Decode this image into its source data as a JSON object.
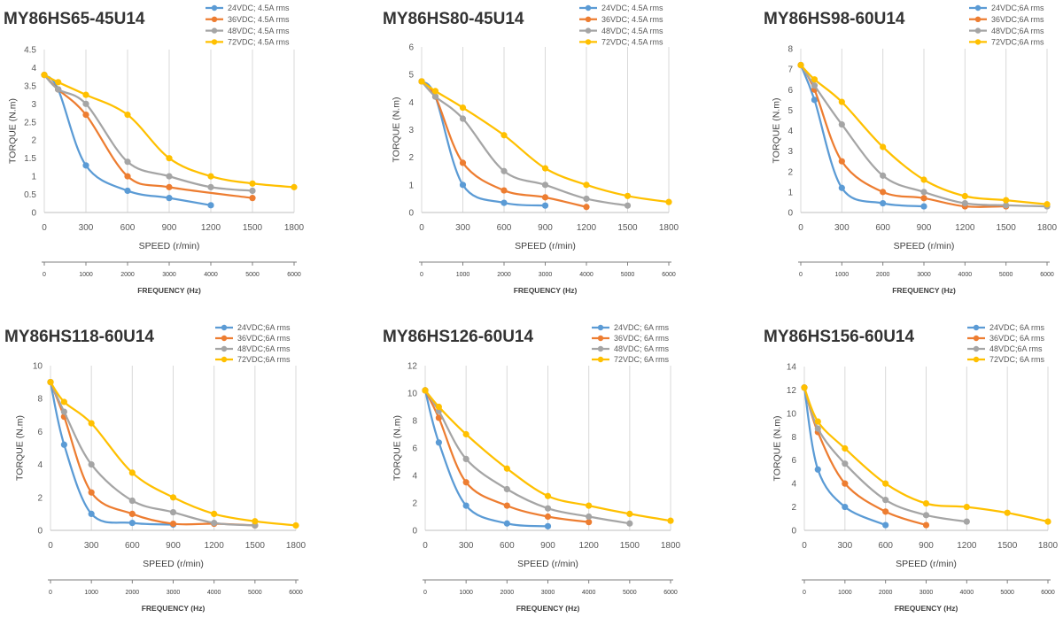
{
  "chart_data": [
    {
      "type": "line",
      "title": "MY86HS65-45U14",
      "xlabel": "SPEED (r/min)",
      "ylabel": "TORQUE (N.m)",
      "x2label": "FREQUENCY (Hz)",
      "xlim": [
        0,
        1800
      ],
      "ylim": [
        0,
        4.5
      ],
      "x2lim": [
        0,
        6000
      ],
      "xticks": [
        0,
        300,
        600,
        900,
        1200,
        1500,
        1800
      ],
      "x2ticks": [
        0,
        1000,
        2000,
        3000,
        4000,
        5000,
        6000
      ],
      "yticks": [
        0,
        0.5,
        1,
        1.5,
        2,
        2.5,
        3,
        3.5,
        4,
        4.5
      ],
      "grid": "vertical",
      "legend": "top-right",
      "series": [
        {
          "name": "24VDC; 4.5A rms",
          "color": "#5B9BD5",
          "x": [
            0,
            100,
            300,
            600,
            900,
            1200
          ],
          "y": [
            3.8,
            3.4,
            1.3,
            0.6,
            0.4,
            0.2
          ]
        },
        {
          "name": "36VDC; 4.5A rms",
          "color": "#ED7D31",
          "x": [
            0,
            100,
            300,
            600,
            900,
            1500
          ],
          "y": [
            3.8,
            3.4,
            2.7,
            1.0,
            0.7,
            0.4
          ]
        },
        {
          "name": "48VDC; 4.5A rms",
          "color": "#A5A5A5",
          "x": [
            0,
            100,
            300,
            600,
            900,
            1200,
            1500
          ],
          "y": [
            3.8,
            3.4,
            3.0,
            1.4,
            1.0,
            0.7,
            0.6
          ]
        },
        {
          "name": "72VDC; 4.5A rms",
          "color": "#FFC000",
          "x": [
            0,
            100,
            300,
            600,
            900,
            1200,
            1500,
            1800
          ],
          "y": [
            3.8,
            3.6,
            3.25,
            2.7,
            1.5,
            1.0,
            0.8,
            0.7
          ]
        }
      ]
    },
    {
      "type": "line",
      "title": "MY86HS80-45U14",
      "xlabel": "SPEED (r/min)",
      "ylabel": "TORQUE (N.m)",
      "x2label": "FREQUENCY (Hz)",
      "xlim": [
        0,
        1800
      ],
      "ylim": [
        0,
        6
      ],
      "x2lim": [
        0,
        6000
      ],
      "xticks": [
        0,
        300,
        600,
        900,
        1200,
        1500,
        1800
      ],
      "x2ticks": [
        0,
        1000,
        2000,
        3000,
        4000,
        5000,
        6000
      ],
      "yticks": [
        0,
        1,
        2,
        3,
        4,
        5,
        6
      ],
      "grid": "vertical",
      "legend": "top-right",
      "series": [
        {
          "name": "24VDC; 4.5A rms",
          "color": "#5B9BD5",
          "x": [
            0,
            100,
            300,
            600,
            900
          ],
          "y": [
            4.75,
            4.2,
            1.0,
            0.35,
            0.25
          ]
        },
        {
          "name": "36VDC; 4.5A rms",
          "color": "#ED7D31",
          "x": [
            0,
            100,
            300,
            600,
            900,
            1200
          ],
          "y": [
            4.75,
            4.2,
            1.8,
            0.8,
            0.55,
            0.2
          ]
        },
        {
          "name": "48VDC; 4.5A rms",
          "color": "#A5A5A5",
          "x": [
            0,
            100,
            300,
            600,
            900,
            1200,
            1500
          ],
          "y": [
            4.75,
            4.2,
            3.4,
            1.5,
            1.0,
            0.5,
            0.25
          ]
        },
        {
          "name": "72VDC; 4.5A rms",
          "color": "#FFC000",
          "x": [
            0,
            100,
            300,
            600,
            900,
            1200,
            1500,
            1800
          ],
          "y": [
            4.75,
            4.4,
            3.8,
            2.8,
            1.6,
            1.0,
            0.6,
            0.38
          ]
        }
      ]
    },
    {
      "type": "line",
      "title": "MY86HS98-60U14",
      "xlabel": "SPEED (r/min)",
      "ylabel": "TORQUE (N.m)",
      "x2label": "FREQUENCY (Hz)",
      "xlim": [
        0,
        1800
      ],
      "ylim": [
        0,
        8
      ],
      "x2lim": [
        0,
        6000
      ],
      "xticks": [
        0,
        300,
        600,
        900,
        1200,
        1500,
        1800
      ],
      "x2ticks": [
        0,
        1000,
        2000,
        3000,
        4000,
        5000,
        6000
      ],
      "yticks": [
        0,
        1,
        2,
        3,
        4,
        5,
        6,
        7,
        8
      ],
      "grid": "vertical",
      "legend": "top-right",
      "series": [
        {
          "name": "24VDC;6A rms",
          "color": "#5B9BD5",
          "x": [
            0,
            100,
            300,
            600,
            900
          ],
          "y": [
            7.2,
            5.5,
            1.2,
            0.45,
            0.3
          ]
        },
        {
          "name": "36VDC;6A rms",
          "color": "#ED7D31",
          "x": [
            0,
            100,
            300,
            600,
            900,
            1200,
            1500
          ],
          "y": [
            7.2,
            6.0,
            2.5,
            1.0,
            0.7,
            0.3,
            0.3
          ]
        },
        {
          "name": "48VDC;6A rms",
          "color": "#A5A5A5",
          "x": [
            0,
            100,
            300,
            600,
            900,
            1200,
            1500,
            1800
          ],
          "y": [
            7.2,
            6.2,
            4.3,
            1.8,
            1.0,
            0.45,
            0.35,
            0.3
          ]
        },
        {
          "name": "72VDC;6A rms",
          "color": "#FFC000",
          "x": [
            0,
            100,
            300,
            600,
            900,
            1200,
            1500,
            1800
          ],
          "y": [
            7.2,
            6.5,
            5.4,
            3.2,
            1.6,
            0.8,
            0.6,
            0.4
          ]
        }
      ]
    },
    {
      "type": "line",
      "title": "MY86HS118-60U14",
      "xlabel": "SPEED (r/min)",
      "ylabel": "TORQUE (N.m)",
      "x2label": "FREQUENCY (Hz)",
      "xlim": [
        0,
        1800
      ],
      "ylim": [
        0,
        10
      ],
      "x2lim": [
        0,
        6000
      ],
      "xticks": [
        0,
        300,
        600,
        900,
        1200,
        1500,
        1800
      ],
      "x2ticks": [
        0,
        1000,
        2000,
        3000,
        4000,
        5000,
        6000
      ],
      "yticks": [
        0,
        2,
        4,
        6,
        8,
        10
      ],
      "grid": "vertical",
      "legend": "top-right",
      "series": [
        {
          "name": "24VDC;6A rms",
          "color": "#5B9BD5",
          "x": [
            0,
            100,
            300,
            600,
            900
          ],
          "y": [
            9,
            5.2,
            1.0,
            0.45,
            0.35
          ]
        },
        {
          "name": "36VDC;6A rms",
          "color": "#ED7D31",
          "x": [
            0,
            100,
            300,
            600,
            900,
            1200,
            1500
          ],
          "y": [
            9,
            6.9,
            2.3,
            1.0,
            0.4,
            0.4,
            0.3
          ]
        },
        {
          "name": "48VDC;6A rms",
          "color": "#A5A5A5",
          "x": [
            0,
            100,
            300,
            600,
            900,
            1200,
            1500
          ],
          "y": [
            9,
            7.2,
            4.0,
            1.8,
            1.1,
            0.45,
            0.3
          ]
        },
        {
          "name": "72VDC;6A rms",
          "color": "#FFC000",
          "x": [
            0,
            100,
            300,
            600,
            900,
            1200,
            1500,
            1800
          ],
          "y": [
            9,
            7.8,
            6.5,
            3.5,
            2.0,
            1.0,
            0.55,
            0.3
          ]
        }
      ]
    },
    {
      "type": "line",
      "title": "MY86HS126-60U14",
      "xlabel": "SPEED (r/min)",
      "ylabel": "TORQUE (N.m)",
      "x2label": "FREQUENCY (Hz)",
      "xlim": [
        0,
        1800
      ],
      "ylim": [
        0,
        12
      ],
      "x2lim": [
        0,
        6000
      ],
      "xticks": [
        0,
        300,
        600,
        900,
        1200,
        1500,
        1800
      ],
      "x2ticks": [
        0,
        1000,
        2000,
        3000,
        4000,
        5000,
        6000
      ],
      "yticks": [
        0,
        2,
        4,
        6,
        8,
        10,
        12
      ],
      "grid": "vertical",
      "legend": "top-right",
      "series": [
        {
          "name": "24VDC; 6A rms",
          "color": "#5B9BD5",
          "x": [
            0,
            100,
            300,
            600,
            900
          ],
          "y": [
            10.2,
            6.4,
            1.8,
            0.5,
            0.3
          ]
        },
        {
          "name": "36VDC; 6A rms",
          "color": "#ED7D31",
          "x": [
            0,
            100,
            300,
            600,
            900,
            1200
          ],
          "y": [
            10.2,
            8.2,
            3.5,
            1.8,
            1.0,
            0.6
          ]
        },
        {
          "name": "48VDC; 6A rms",
          "color": "#A5A5A5",
          "x": [
            0,
            100,
            300,
            600,
            900,
            1200,
            1500
          ],
          "y": [
            10.2,
            8.7,
            5.2,
            3.0,
            1.6,
            1.0,
            0.5
          ]
        },
        {
          "name": "72VDC; 6A rms",
          "color": "#FFC000",
          "x": [
            0,
            100,
            300,
            600,
            900,
            1200,
            1500,
            1800
          ],
          "y": [
            10.2,
            9.0,
            7.0,
            4.5,
            2.5,
            1.8,
            1.2,
            0.7
          ]
        }
      ]
    },
    {
      "type": "line",
      "title": "MY86HS156-60U14",
      "xlabel": "SPEED (r/min)",
      "ylabel": "TORQUE (N.m)",
      "x2label": "FREQUENCY (Hz)",
      "xlim": [
        0,
        1800
      ],
      "ylim": [
        0,
        14
      ],
      "x2lim": [
        0,
        6000
      ],
      "xticks": [
        0,
        300,
        600,
        900,
        1200,
        1500,
        1800
      ],
      "x2ticks": [
        0,
        1000,
        2000,
        3000,
        4000,
        5000,
        6000
      ],
      "yticks": [
        0,
        2,
        4,
        6,
        8,
        10,
        12,
        14
      ],
      "grid": "vertical",
      "legend": "top-right",
      "series": [
        {
          "name": "24VDC; 6A rms",
          "color": "#5B9BD5",
          "x": [
            0,
            100,
            300,
            600
          ],
          "y": [
            12.2,
            5.2,
            2.0,
            0.45
          ]
        },
        {
          "name": "36VDC; 6A rms",
          "color": "#ED7D31",
          "x": [
            0,
            100,
            300,
            600,
            900
          ],
          "y": [
            12.2,
            8.4,
            4.0,
            1.6,
            0.45
          ]
        },
        {
          "name": "48VDC;6A rms",
          "color": "#A5A5A5",
          "x": [
            0,
            100,
            300,
            600,
            900,
            1200
          ],
          "y": [
            12.2,
            8.7,
            5.7,
            2.6,
            1.3,
            0.75
          ]
        },
        {
          "name": "72VDC; 6A rms",
          "color": "#FFC000",
          "x": [
            0,
            100,
            300,
            600,
            900,
            1200,
            1500,
            1800
          ],
          "y": [
            12.2,
            9.3,
            7.0,
            4.0,
            2.3,
            2.0,
            1.5,
            0.75
          ]
        }
      ]
    }
  ]
}
